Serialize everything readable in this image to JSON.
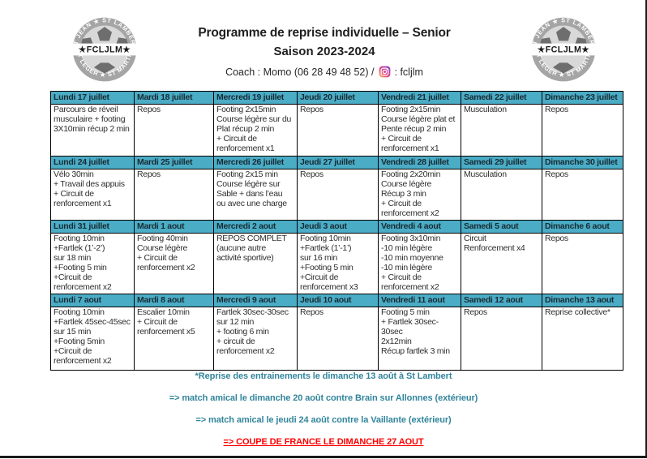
{
  "header": {
    "title": "Programme de reprise individuelle – Senior",
    "season": "Saison 2023-2024",
    "coach_label": "Coach : Momo (06 28 49 48 52) /",
    "instagram_handle": ": fcljlm"
  },
  "logo": {
    "band_text": "★FCLJLM★",
    "arc_top": "ST JEAN ★ ST LAMBERT",
    "arc_bottom": "ST LEGER ★ ST MARTIN"
  },
  "colors": {
    "header_fill": "#4BACC6",
    "header_text": "#172b33",
    "body_text": "#2e2e2e",
    "note_teal": "#31859C",
    "note_red": "#FF0000",
    "border": "#000000"
  },
  "weeks": [
    {
      "headers": [
        "Lundi 17 juillet",
        "Mardi 18 juillet",
        "Mercredi 19 juillet",
        "Jeudi 20 juillet",
        "Vendredi 21 juillet",
        "Samedi 22 juillet",
        "Dimanche 23 juillet"
      ],
      "cells": [
        "Parcours de réveil\nmusculaire + footing\n3X10min récup 2 min",
        "Repos",
        "Footing 2x15min\nCourse légère sur du\nPlat récup 2 min\n+ Circuit de\nrenforcement x1",
        "Repos",
        "Footing 2x15min\nCourse légère plat et\nPente récup 2 min\n+ Circuit de\nrenforcement x1",
        "Musculation",
        "Repos"
      ]
    },
    {
      "headers": [
        "Lundi 24 juillet",
        "Mardi 25 juillet",
        "Mercredi 26 juillet",
        "Jeudi 27 juillet",
        "Vendredi 28 juillet",
        "Samedi 29 juillet",
        "Dimanche 30 juillet"
      ],
      "cells": [
        "Vélo 30min\n+ Travail des appuis\n+ Circuit de\nrenforcement x1",
        "Repos",
        "Footing 2x15 min\nCourse légère sur\nSable + dans l’eau\nou avec une charge",
        "Repos",
        "Footing 2x20min\nCourse légère\nRécup 3 min\n+ Circuit de\nrenforcement x2",
        "Musculation",
        "Repos"
      ]
    },
    {
      "headers": [
        "Lundi 31 juillet",
        "Mardi 1 aout",
        "Mercredi 2 aout",
        "Jeudi 3 aout",
        "Vendredi 4 aout",
        "Samedi 5 aout",
        "Dimanche 6 aout"
      ],
      "cells": [
        "Footing 10min\n+Fartlek (1’-2’)\nsur 18 min\n+Footing 5 min\n+Circuit de\nrenforcement x2",
        "Footing 40min\nCourse légère\n+ Circuit de\nrenforcement x2",
        "REPOS COMPLET\n(aucune autre\nactivité sportive)",
        "Footing 10min\n+Fartlek (1’-1’)\nsur 16 min\n+Footing 5 min\n+Circuit de\nrenforcement x3",
        "Footing 3x10min\n-10 min légère\n-10 min moyenne\n-10 min légère\n+ Circuit de\nrenforcement x2",
        "Circuit\nRenforcement x4",
        "Repos"
      ]
    },
    {
      "headers": [
        "Lundi 7 aout",
        "Mardi 8 aout",
        "Mercredi 9 aout",
        "Jeudi 10 aout",
        "Vendredi 11 aout",
        "Samedi 12 aout",
        "Dimanche 13 aout"
      ],
      "cells": [
        "Footing 10min\n+Fartlek 45sec-45sec\nsur 15 min\n+Footing 5min\n+Circuit de\nrenforcement x2",
        "Escalier 10min\n+ Circuit de\nrenforcement x5",
        "Fartlek 30sec-30sec\nsur 12 min\n+ footing 6 min\n+ circuit de\nrenforcement x2",
        "Repos",
        "Footing 5 min\n+ Fartlek 30sec-\n30sec\n2x12min\nRécup fartlek 3 min",
        "Repos",
        "Reprise collective*"
      ]
    }
  ],
  "notes": [
    {
      "text": "*Reprise des entrainements le dimanche 13 août à St Lambert",
      "style": "teal"
    },
    {
      "text": "=> match amical le dimanche 20 août contre Brain sur Allonnes (extérieur)",
      "style": "teal"
    },
    {
      "text": "=> match amical le  jeudi 24 août  contre la Vaillante  (extérieur)",
      "style": "teal"
    },
    {
      "text": "=> COUPE DE FRANCE LE DIMANCHE 27 AOUT",
      "style": "red"
    }
  ]
}
